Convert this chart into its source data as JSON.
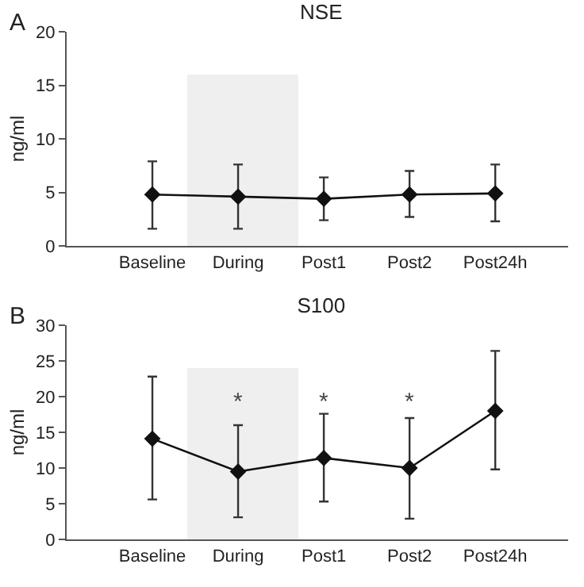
{
  "chart_data": [
    {
      "type": "line",
      "title": "NSE",
      "ylabel": "ng/ml",
      "categories": [
        "Baseline",
        "During",
        "Post1",
        "Post2",
        "Post24h"
      ],
      "series": [
        {
          "color": "#111111",
          "values": [
            4.8,
            4.6,
            4.4,
            4.8,
            4.9
          ],
          "errors": [
            [
              1.6,
              7.9
            ],
            [
              1.6,
              7.6
            ],
            [
              2.4,
              6.4
            ],
            [
              2.7,
              7.0
            ],
            [
              2.3,
              7.6
            ]
          ]
        }
      ],
      "ylim": [
        0,
        20
      ],
      "yticks": [
        0,
        5,
        10,
        15,
        20
      ],
      "grid": false,
      "marker": "diamond",
      "line_style": "solid",
      "annotations": [
        "A"
      ]
    },
    {
      "type": "line",
      "title": "S100",
      "ylabel": "ng/ml",
      "categories": [
        "Baseline",
        "During",
        "Post1",
        "Post2",
        "Post24h"
      ],
      "series": [
        {
          "color": "#111111",
          "values": [
            14.1,
            9.5,
            11.4,
            10.0,
            18.0
          ],
          "errors": [
            [
              5.6,
              22.8
            ],
            [
              3.1,
              16.0
            ],
            [
              5.3,
              17.6
            ],
            [
              2.9,
              17.0
            ],
            [
              9.8,
              26.4
            ]
          ]
        }
      ],
      "ylim": [
        0,
        30
      ],
      "yticks": [
        0,
        5,
        10,
        15,
        20,
        25,
        30
      ],
      "grid": false,
      "marker": "diamond",
      "line_style": "solid",
      "annotations": [
        "B",
        "*",
        "*",
        "*"
      ]
    }
  ]
}
